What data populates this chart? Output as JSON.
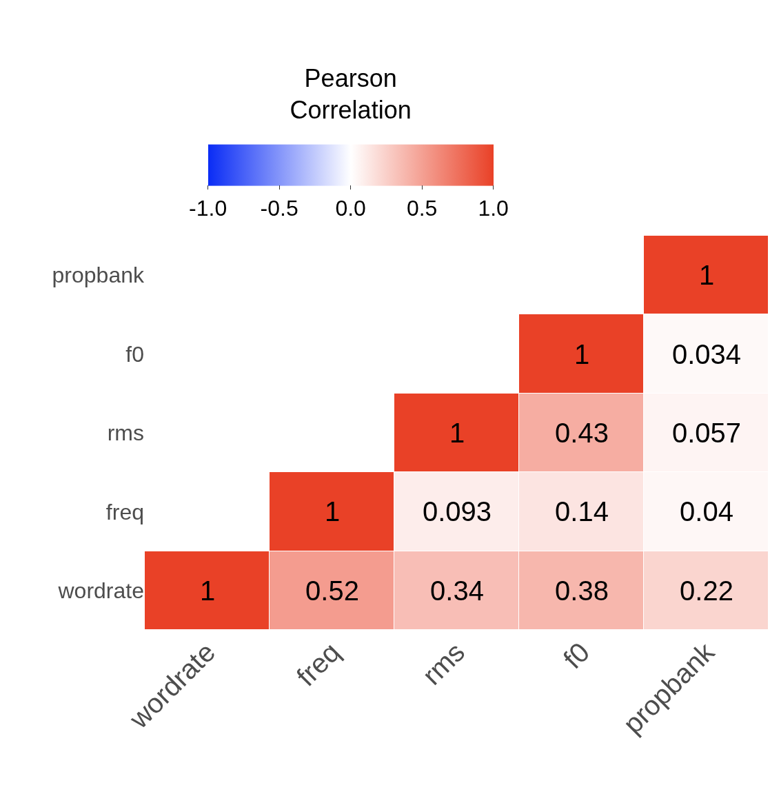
{
  "chart_data": {
    "type": "heatmap",
    "clabel": "Pearson\nCorrelation",
    "categories": [
      "wordrate",
      "freq",
      "rms",
      "f0",
      "propbank"
    ],
    "y_categories": [
      "propbank",
      "f0",
      "rms",
      "freq",
      "wordrate"
    ],
    "cells": [
      [
        null,
        null,
        null,
        null,
        1
      ],
      [
        null,
        null,
        null,
        1,
        0.034
      ],
      [
        null,
        null,
        1,
        0.43,
        0.057
      ],
      [
        null,
        1,
        0.093,
        0.14,
        0.04
      ],
      [
        1,
        0.52,
        0.34,
        0.38,
        0.22
      ]
    ],
    "clim": [
      -1,
      1
    ],
    "cticks": [
      {
        "value": -1,
        "label": "-1.0"
      },
      {
        "value": -0.5,
        "label": "-0.5"
      },
      {
        "value": 0,
        "label": "0.0"
      },
      {
        "value": 0.5,
        "label": "0.5"
      },
      {
        "value": 1,
        "label": "1.0"
      }
    ],
    "colors": [
      "#0a2cf5",
      "#ffffff",
      "#e94127"
    ],
    "data_labels": true
  }
}
